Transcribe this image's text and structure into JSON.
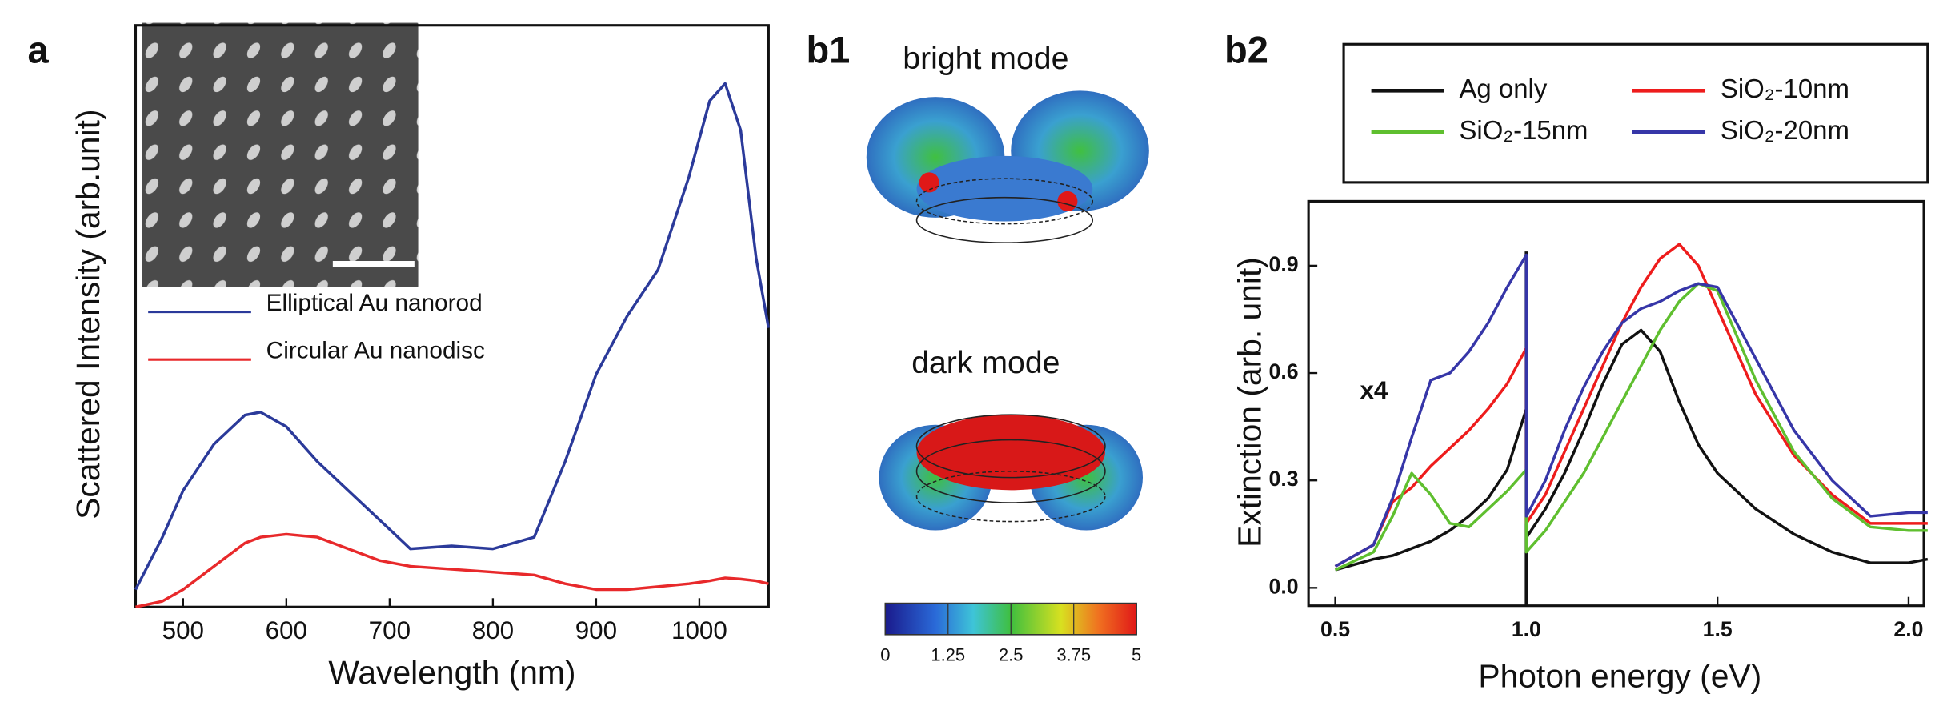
{
  "chart_data": [
    {
      "type": "line",
      "panel": "a",
      "xlabel": "Wavelength (nm)",
      "ylabel": "Scattered Intensity (arb.unit)",
      "xlim": [
        454,
        1067
      ],
      "ylim": [
        0,
        1
      ],
      "xticks": [
        500,
        600,
        700,
        800,
        900,
        1000
      ],
      "x": [
        454,
        480,
        500,
        530,
        560,
        575,
        600,
        630,
        660,
        690,
        720,
        760,
        800,
        840,
        870,
        900,
        930,
        960,
        990,
        1010,
        1025,
        1040,
        1055,
        1067
      ],
      "series": [
        {
          "name": "Elliptical Au nanorod",
          "color": "#2b3a9a",
          "values": [
            0.03,
            0.12,
            0.2,
            0.28,
            0.33,
            0.335,
            0.31,
            0.25,
            0.2,
            0.15,
            0.1,
            0.105,
            0.1,
            0.12,
            0.25,
            0.4,
            0.5,
            0.58,
            0.74,
            0.87,
            0.9,
            0.82,
            0.6,
            0.48
          ]
        },
        {
          "name": "Circular Au nanodisc",
          "color": "#e8292b",
          "values": [
            0,
            0.01,
            0.03,
            0.07,
            0.11,
            0.12,
            0.125,
            0.12,
            0.1,
            0.08,
            0.07,
            0.065,
            0.06,
            0.055,
            0.04,
            0.03,
            0.03,
            0.035,
            0.04,
            0.045,
            0.05,
            0.048,
            0.045,
            0.04
          ]
        }
      ]
    },
    {
      "type": "colorbar",
      "panel": "b1",
      "labels": [
        "bright mode",
        "dark mode"
      ],
      "lim": [
        0,
        5
      ],
      "ticks": [
        0,
        1.25,
        2.5,
        3.75,
        5
      ]
    },
    {
      "type": "line",
      "panel": "b2",
      "xlabel": "Photon energy (eV)",
      "ylabel": "Extinction (arb. unit)",
      "annotation": "x4",
      "xlim": [
        0.43,
        2.04
      ],
      "ylim": [
        -0.05,
        1.08
      ],
      "xticks": [
        0.5,
        {
          "value": 1,
          "label": "1.0"
        },
        1.5,
        {
          "value": 2,
          "label": "2.0"
        }
      ],
      "yticks": [
        {
          "value": 0,
          "label": "0.0"
        },
        0.3,
        0.6,
        0.9
      ],
      "x": [
        0.5,
        0.6,
        0.65,
        0.7,
        0.75,
        0.8,
        0.85,
        0.9,
        0.95,
        1.0,
        1.0,
        1.05,
        1.1,
        1.15,
        1.2,
        1.25,
        1.3,
        1.35,
        1.4,
        1.45,
        1.5,
        1.6,
        1.7,
        1.8,
        1.9,
        2.0,
        2.05
      ],
      "series": [
        {
          "name": "Ag only",
          "color": "#111111",
          "values": [
            0.05,
            0.08,
            0.09,
            0.11,
            0.13,
            0.16,
            0.2,
            0.25,
            0.33,
            0.5,
            0.14,
            0.22,
            0.32,
            0.44,
            0.57,
            0.68,
            0.72,
            0.66,
            0.52,
            0.4,
            0.32,
            0.22,
            0.15,
            0.1,
            0.07,
            0.07,
            0.08
          ]
        },
        {
          "name": "SiO₂-10nm",
          "color": "#ee1c1c",
          "values": [
            0.06,
            0.12,
            0.24,
            0.28,
            0.34,
            0.39,
            0.44,
            0.5,
            0.57,
            0.67,
            0.18,
            0.26,
            0.38,
            0.5,
            0.62,
            0.74,
            0.84,
            0.92,
            0.96,
            0.9,
            0.78,
            0.54,
            0.37,
            0.26,
            0.18,
            0.18,
            0.18
          ]
        },
        {
          "name": "SiO₂-15nm",
          "color": "#5fbf2f",
          "values": [
            0.05,
            0.1,
            0.2,
            0.32,
            0.26,
            0.18,
            0.17,
            0.22,
            0.27,
            0.33,
            0.1,
            0.16,
            0.24,
            0.32,
            0.42,
            0.52,
            0.62,
            0.72,
            0.8,
            0.85,
            0.83,
            0.58,
            0.38,
            0.25,
            0.17,
            0.16,
            0.16
          ]
        },
        {
          "name": "SiO₂-20nm",
          "color": "#3636a8",
          "values": [
            0.06,
            0.12,
            0.25,
            0.42,
            0.58,
            0.6,
            0.66,
            0.74,
            0.84,
            0.93,
            0.2,
            0.3,
            0.44,
            0.56,
            0.66,
            0.74,
            0.78,
            0.8,
            0.83,
            0.85,
            0.84,
            0.64,
            0.44,
            0.3,
            0.2,
            0.21,
            0.21
          ]
        }
      ]
    }
  ]
}
